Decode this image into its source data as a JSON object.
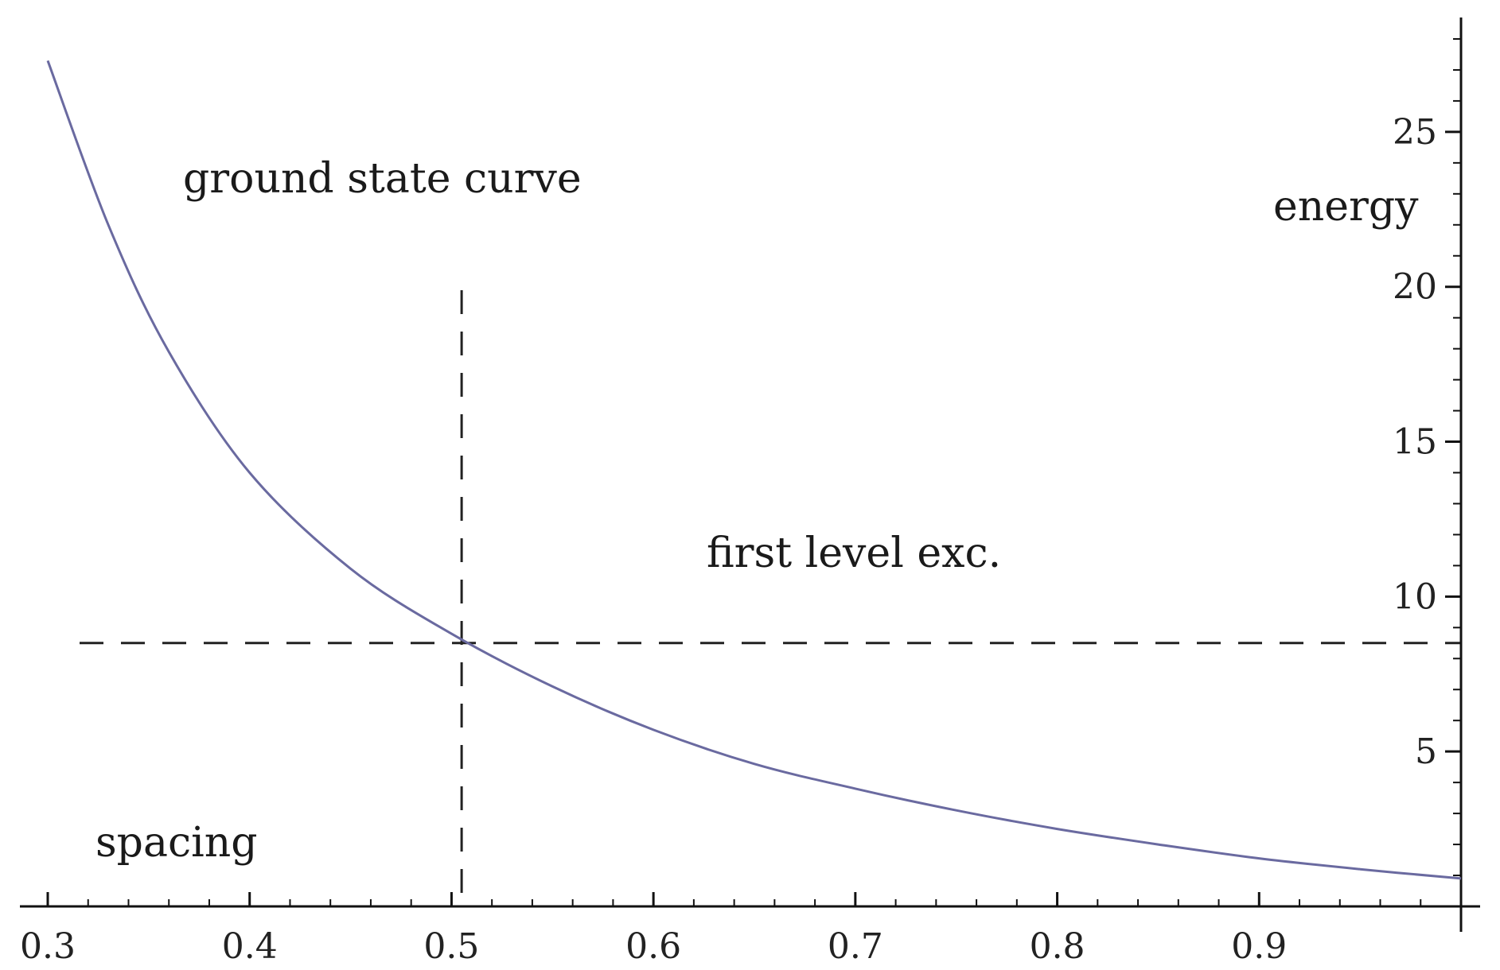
{
  "chart_data": {
    "type": "line",
    "title": "",
    "xlabel": "spacing",
    "ylabel": "energy",
    "xlim": [
      0.3,
      1.0
    ],
    "ylim": [
      0,
      28
    ],
    "x_ticks": [
      0.3,
      0.4,
      0.5,
      0.6,
      0.7,
      0.8,
      0.9
    ],
    "x_tick_labels": [
      "0.3",
      "0.4",
      "0.5",
      "0.6",
      "0.7",
      "0.8",
      "0.9"
    ],
    "y_ticks": [
      5,
      10,
      15,
      20,
      25
    ],
    "y_tick_labels": [
      "5",
      "10",
      "15",
      "20",
      "25"
    ],
    "y_axis_side": "right",
    "grid": false,
    "series": [
      {
        "x": [
          0.3,
          0.33,
          0.36,
          0.4,
          0.45,
          0.5,
          0.55,
          0.6,
          0.65,
          0.7,
          0.75,
          0.8,
          0.85,
          0.9,
          0.95,
          1.0
        ],
        "y": [
          27.3,
          22.0,
          17.9,
          14.0,
          10.9,
          8.8,
          7.1,
          5.7,
          4.6,
          3.8,
          3.1,
          2.5,
          2.0,
          1.55,
          1.2,
          0.9
        ],
        "color": "#6a6aa0"
      }
    ],
    "reference_lines": {
      "horizontal_y": 8.5,
      "vertical_x": 0.505,
      "style": "dashed",
      "color": "#222222"
    },
    "annotations": [
      "ground state curve",
      "first level exc."
    ]
  }
}
